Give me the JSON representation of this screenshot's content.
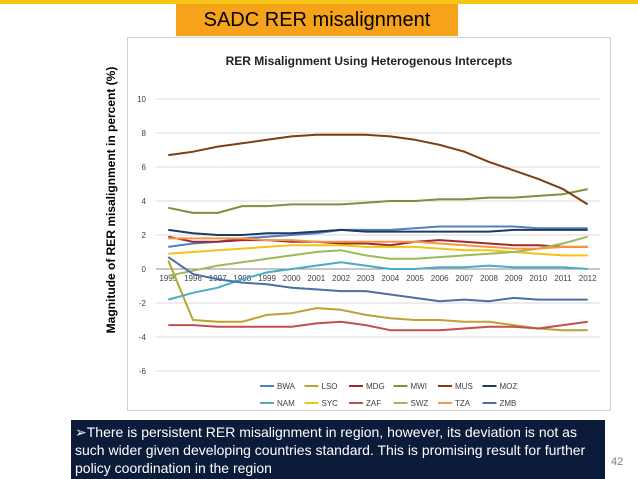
{
  "slide": {
    "title": "SADC RER misalignment",
    "caption": "➢There is persistent RER misalignment in region, however, its deviation is not  as such wider given developing countries  standard.  This is promising result  for further  policy coordination in the region",
    "page_number": "42"
  },
  "colors": {
    "top_bar": "#f5c518",
    "title_box": "#f6a21a",
    "caption_bg": "#0d1b3a"
  },
  "chart_data": {
    "type": "line",
    "title": "RER Misalignment Using Heterogenous Intercepts",
    "ylabel": "Magnitude of  RER misalignment in percent (%)",
    "xlabel": "",
    "ylim": [
      -6,
      10
    ],
    "yticks": [
      10,
      8,
      6,
      4,
      2,
      0,
      -2,
      -4,
      -6
    ],
    "x": [
      1995,
      1996,
      1997,
      1998,
      1999,
      2000,
      2001,
      2002,
      2003,
      2004,
      2005,
      2006,
      2007,
      2008,
      2009,
      2010,
      2011,
      2012
    ],
    "x_tick_labels": [
      "1995",
      "1996",
      "1997",
      "1998",
      "1999",
      "2000",
      "2001",
      "2002",
      "2003",
      "2004",
      "2005",
      "2006",
      "2007",
      "2008",
      "2009",
      "2010",
      "2011",
      "2012"
    ],
    "grid": true,
    "legend_position": "bottom",
    "series": [
      {
        "name": "BWA",
        "color": "#4f81bd",
        "values": [
          1.3,
          1.5,
          1.6,
          1.8,
          1.9,
          2.0,
          2.1,
          2.3,
          2.3,
          2.3,
          2.4,
          2.5,
          2.5,
          2.5,
          2.5,
          2.4,
          2.4,
          2.4
        ]
      },
      {
        "name": "LSO",
        "color": "#c0a030",
        "values": [
          0.5,
          -3.0,
          -3.1,
          -3.1,
          -2.7,
          -2.6,
          -2.3,
          -2.4,
          -2.7,
          -2.9,
          -3.0,
          -3.0,
          -3.1,
          -3.1,
          -3.3,
          -3.5,
          -3.6,
          -3.6
        ]
      },
      {
        "name": "MDG",
        "color": "#9b2d30",
        "values": [
          1.9,
          1.6,
          1.6,
          1.7,
          1.7,
          1.6,
          1.6,
          1.5,
          1.5,
          1.4,
          1.6,
          1.7,
          1.6,
          1.5,
          1.4,
          1.4,
          1.3,
          1.3
        ]
      },
      {
        "name": "MWI",
        "color": "#77933c",
        "values": [
          3.6,
          3.3,
          3.3,
          3.7,
          3.7,
          3.8,
          3.8,
          3.8,
          3.9,
          4.0,
          4.0,
          4.1,
          4.1,
          4.2,
          4.2,
          4.3,
          4.4,
          4.7
        ]
      },
      {
        "name": "MUS",
        "color": "#7f3f10",
        "values": [
          6.7,
          6.9,
          7.2,
          7.4,
          7.6,
          7.8,
          7.9,
          7.9,
          7.9,
          7.8,
          7.6,
          7.3,
          6.9,
          6.3,
          5.8,
          5.3,
          4.7,
          3.8
        ]
      },
      {
        "name": "MOZ",
        "color": "#1f3864",
        "values": [
          2.3,
          2.1,
          2.0,
          2.0,
          2.1,
          2.1,
          2.2,
          2.3,
          2.2,
          2.2,
          2.2,
          2.2,
          2.2,
          2.2,
          2.3,
          2.3,
          2.3,
          2.3
        ]
      },
      {
        "name": "NAM",
        "color": "#4bacc6",
        "values": [
          -1.8,
          -1.4,
          -1.1,
          -0.6,
          -0.2,
          0.0,
          0.2,
          0.4,
          0.2,
          0.0,
          0.0,
          0.1,
          0.1,
          0.2,
          0.1,
          0.1,
          0.1,
          0.0
        ]
      },
      {
        "name": "SYC",
        "color": "#f2c318",
        "values": [
          0.9,
          1.0,
          1.1,
          1.2,
          1.3,
          1.4,
          1.4,
          1.4,
          1.3,
          1.3,
          1.3,
          1.2,
          1.1,
          1.1,
          1.0,
          0.9,
          0.8,
          0.8
        ]
      },
      {
        "name": "ZAF",
        "color": "#c0504d",
        "values": [
          -3.3,
          -3.3,
          -3.4,
          -3.4,
          -3.4,
          -3.4,
          -3.2,
          -3.1,
          -3.3,
          -3.6,
          -3.6,
          -3.6,
          -3.5,
          -3.4,
          -3.4,
          -3.5,
          -3.3,
          -3.1
        ]
      },
      {
        "name": "SWZ",
        "color": "#9bbb59",
        "values": [
          -0.4,
          -0.1,
          0.2,
          0.4,
          0.6,
          0.8,
          1.0,
          1.1,
          0.8,
          0.6,
          0.6,
          0.7,
          0.8,
          0.9,
          1.0,
          1.2,
          1.5,
          1.9
        ]
      },
      {
        "name": "TZA",
        "color": "#f79646",
        "values": [
          1.8,
          1.8,
          1.8,
          1.8,
          1.7,
          1.7,
          1.6,
          1.6,
          1.6,
          1.6,
          1.6,
          1.5,
          1.4,
          1.3,
          1.2,
          1.2,
          1.3,
          1.3
        ]
      },
      {
        "name": "ZMB",
        "color": "#4a6fa5",
        "values": [
          0.7,
          -0.3,
          -0.6,
          -0.8,
          -0.9,
          -1.1,
          -1.2,
          -1.3,
          -1.3,
          -1.5,
          -1.7,
          -1.9,
          -1.8,
          -1.9,
          -1.7,
          -1.8,
          -1.8,
          -1.8
        ]
      }
    ]
  }
}
